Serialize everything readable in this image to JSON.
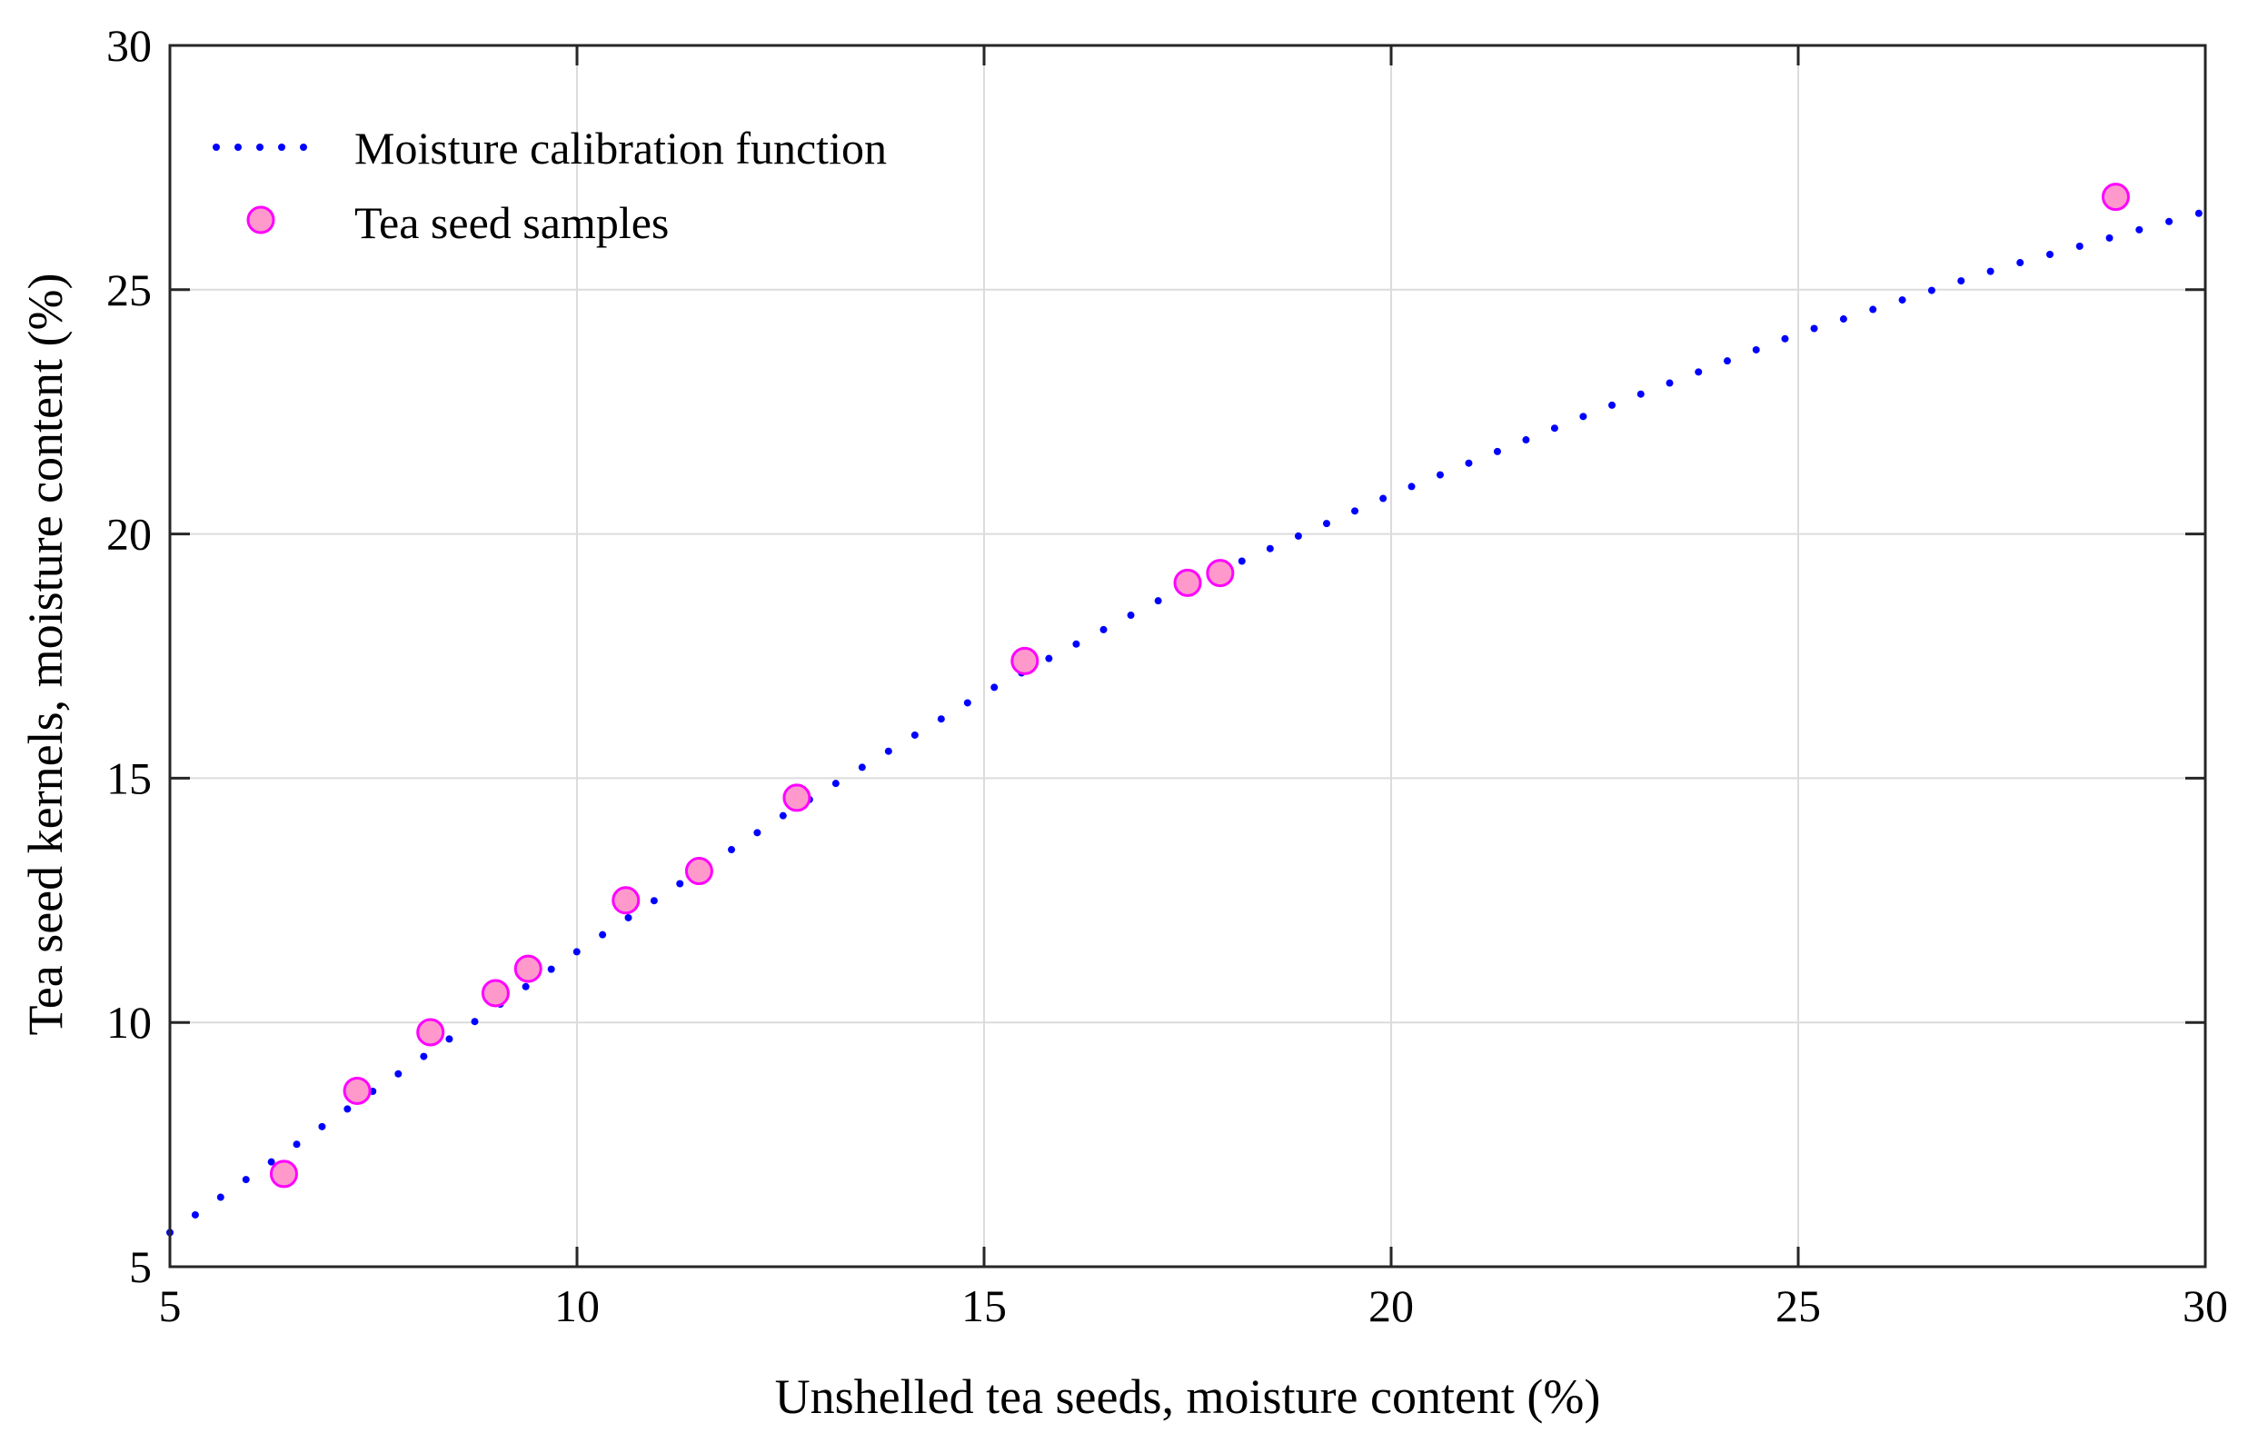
{
  "chart_data": {
    "type": "scatter",
    "title": "",
    "xlabel": "Unshelled tea seeds, moisture content (%)",
    "ylabel": "Tea seed kernels, moisture content (%)",
    "xlim": [
      5,
      30
    ],
    "ylim": [
      5,
      30
    ],
    "xticks": [
      5,
      10,
      15,
      20,
      25,
      30
    ],
    "yticks": [
      5,
      10,
      15,
      20,
      25,
      30
    ],
    "xtick_labels": [
      "5",
      "10",
      "15",
      "20",
      "25",
      "30"
    ],
    "ytick_labels": [
      "5",
      "10",
      "15",
      "20",
      "25",
      "30"
    ],
    "grid": true,
    "legend_position": "top-left",
    "series": [
      {
        "name": "Moisture calibration function",
        "kind": "line",
        "style": "dotted",
        "color": "#0000ff",
        "x": [
          5.0,
          7.5,
          10.0,
          12.5,
          15.0,
          17.5,
          20.0,
          22.5,
          25.0,
          27.5,
          30.0
        ],
        "y": [
          5.7,
          8.6,
          11.45,
          14.2,
          16.75,
          18.95,
          20.8,
          22.5,
          24.1,
          25.45,
          26.6
        ]
      },
      {
        "name": "Tea seed samples",
        "kind": "scatter",
        "color": "#ff99cc",
        "edge_color": "#ff00ff",
        "x": [
          6.4,
          7.3,
          8.2,
          9.0,
          9.4,
          10.6,
          11.5,
          12.7,
          15.5,
          17.5,
          17.9,
          28.9
        ],
        "y": [
          6.9,
          8.6,
          9.8,
          10.6,
          11.1,
          12.5,
          13.1,
          14.6,
          17.4,
          19.0,
          19.2,
          26.9
        ]
      }
    ]
  }
}
